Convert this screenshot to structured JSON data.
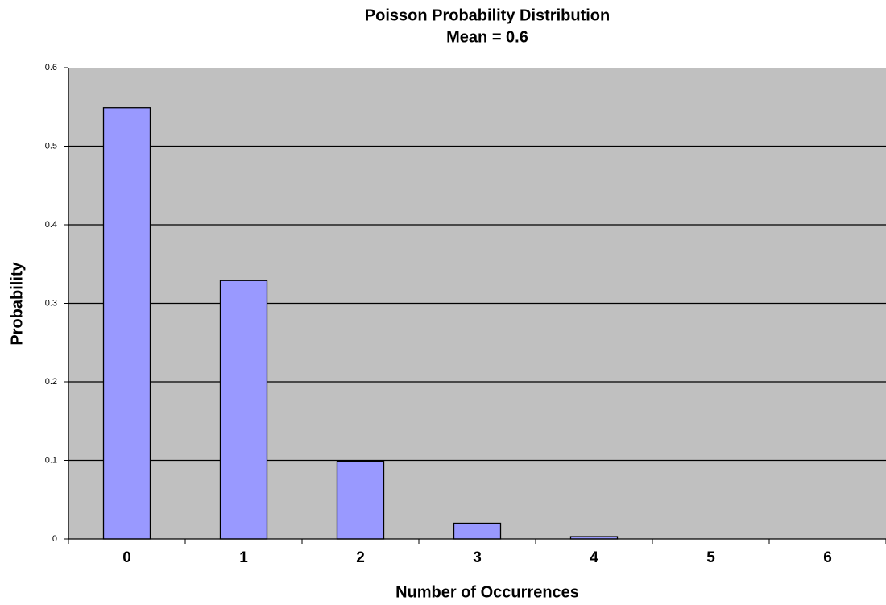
{
  "chart_data": {
    "type": "bar",
    "title": "Poisson Probability Distribution",
    "subtitle": "Mean = 0.6",
    "x_label": "Number of Occurrences",
    "y_label": "Probability",
    "categories": [
      "0",
      "1",
      "2",
      "3",
      "4",
      "5",
      "6"
    ],
    "values": [
      0.549,
      0.329,
      0.099,
      0.02,
      0.003,
      0,
      0
    ],
    "color": "#9999ff",
    "background": "#c0c0c0",
    "ylim": [
      0,
      0.6
    ],
    "yticks": [
      0,
      0.1,
      0.2,
      0.3,
      0.4,
      0.5,
      0.6
    ],
    "grid": true
  }
}
